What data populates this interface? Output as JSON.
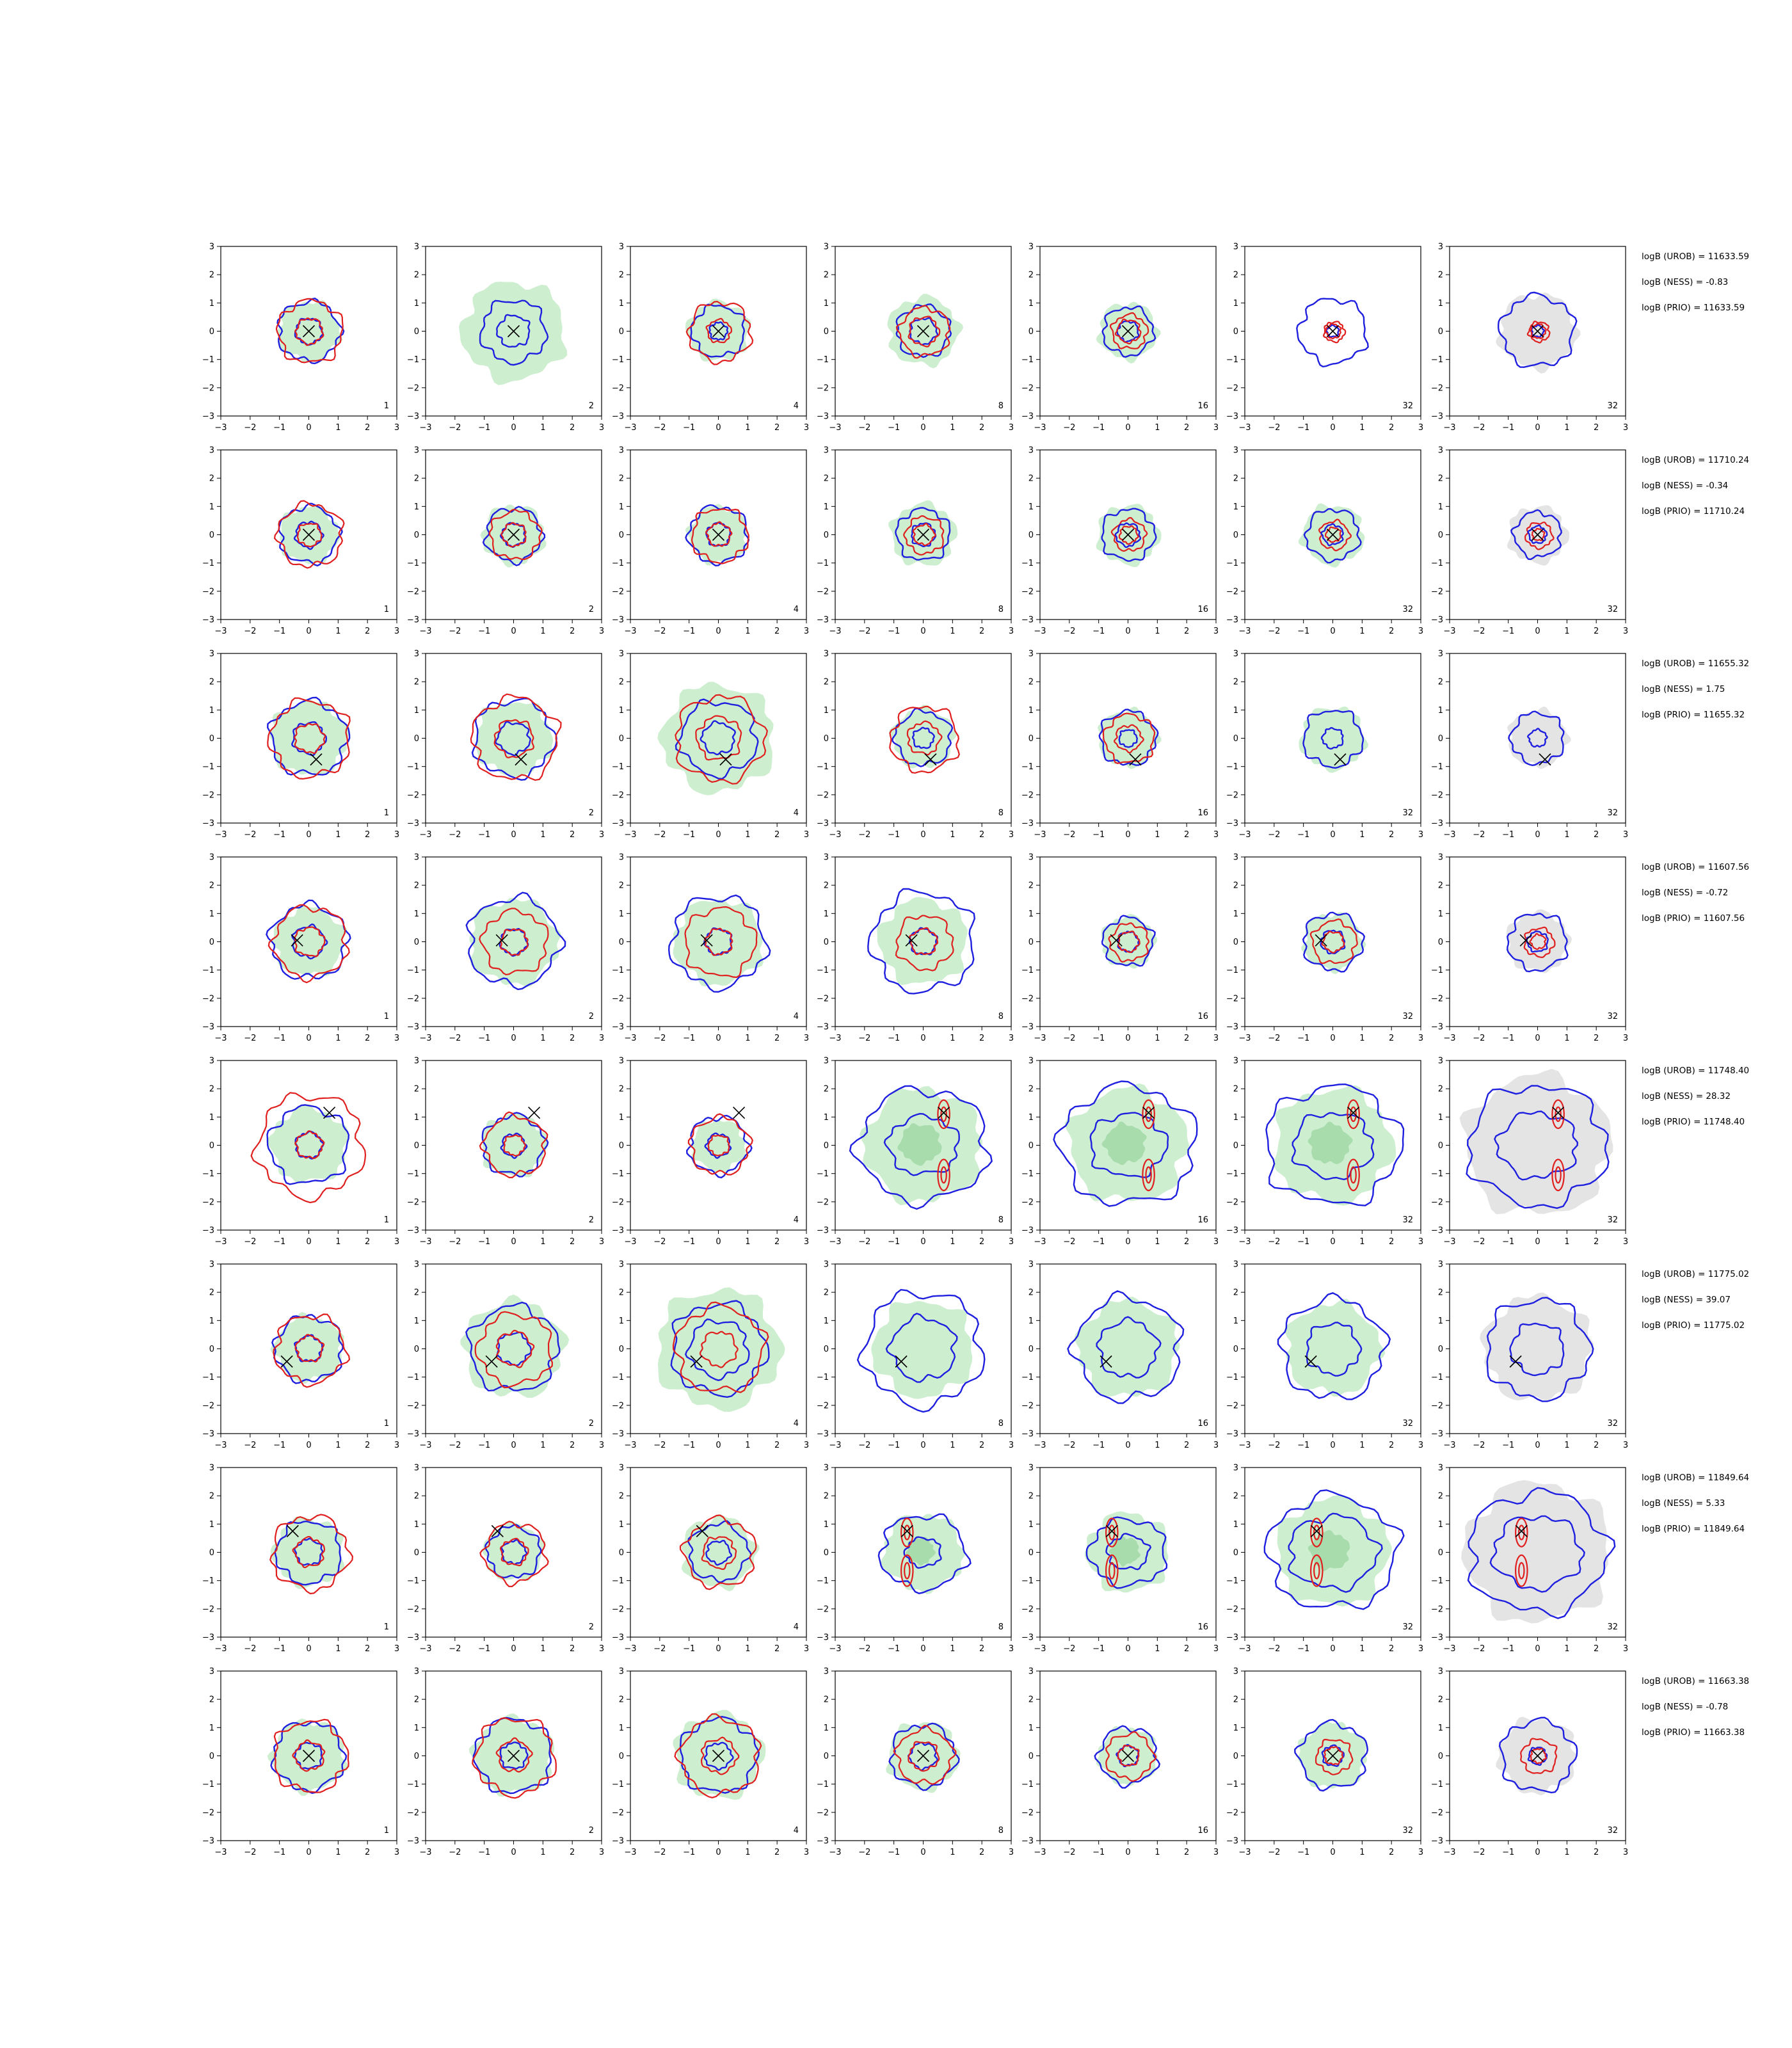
{
  "chart_data": {
    "type": "contour",
    "grid": {
      "rows": 8,
      "cols": 7
    },
    "axes": {
      "xlim": [
        -3,
        3
      ],
      "ylim": [
        -3,
        3
      ],
      "ticks": [
        -3,
        -2,
        -1,
        0,
        1,
        2,
        3
      ],
      "tick_labels": [
        "−3",
        "−2",
        "−1",
        "0",
        "1",
        "2",
        "3"
      ]
    },
    "grid_lines": false,
    "colors": {
      "model_a": "#1f1fe0",
      "model_b": "#e01f1f",
      "density_fill": "#cdeecf",
      "density_fill_dark": "#a8dcad",
      "prior_fill": "#e4e4e4",
      "marker": "#000000",
      "frame": "#000000"
    },
    "column_labels": [
      "1",
      "2",
      "4",
      "8",
      "16",
      "32",
      "32"
    ],
    "rows": [
      {
        "marker": [
          0.0,
          0.0
        ],
        "shape": "center",
        "annotations": [
          "logB (UROB) = 11633.59",
          "logB (NESS) = -0.83",
          "logB (PRIO) = 11633.59"
        ],
        "radii": {
          "fill": [
            1.05,
            1.75,
            1.05,
            1.2,
            1.0,
            0.0,
            0.0
          ],
          "a_outer": [
            1.05,
            1.1,
            0.9,
            0.9,
            0.85,
            1.15,
            1.25
          ],
          "a_inner": [
            0.45,
            0.55,
            0.3,
            0.45,
            0.35,
            0.2,
            0.2
          ],
          "b_outer": [
            1.1,
            0,
            1.05,
            0.85,
            0.6,
            0.35,
            0.35
          ],
          "b_inner": [
            0.45,
            0,
            0.4,
            0.5,
            0.4,
            0.25,
            0.25
          ]
        }
      },
      {
        "marker": [
          0.0,
          0.0
        ],
        "shape": "center",
        "annotations": [
          "logB (UROB) = 11710.24",
          "logB (NESS) = -0.34",
          "logB (PRIO) = 11710.24"
        ],
        "radii": {
          "fill": [
            1.0,
            1.05,
            1.0,
            1.1,
            1.05,
            1.05,
            0.0
          ],
          "a_outer": [
            1.0,
            0.95,
            1.0,
            0.9,
            0.9,
            0.9,
            0.8
          ],
          "a_inner": [
            0.45,
            0.4,
            0.4,
            0.4,
            0.4,
            0.35,
            0.3
          ],
          "b_outer": [
            1.1,
            0.85,
            0.95,
            0.65,
            0.55,
            0.5,
            0.45
          ],
          "b_inner": [
            0.4,
            0.4,
            0.4,
            0.35,
            0.3,
            0.25,
            0.2
          ]
        }
      },
      {
        "marker": [
          0.25,
          -0.75
        ],
        "shape": "offset",
        "annotations": [
          "logB (UROB) = 11655.32",
          "logB (NESS) = 1.75",
          "logB (PRIO) = 11655.32"
        ],
        "radii": {
          "fill": [
            1.3,
            1.3,
            1.9,
            1.05,
            1.0,
            1.1,
            0.0
          ],
          "a_outer": [
            1.3,
            1.35,
            1.3,
            0.95,
            0.95,
            1.0,
            0.9
          ],
          "a_inner": [
            0.55,
            0.55,
            0.55,
            0.35,
            0.3,
            0.35,
            0.3
          ],
          "b_outer": [
            1.35,
            1.45,
            1.5,
            1.15,
            0.85,
            0,
            0
          ],
          "b_inner": [
            0.5,
            0.65,
            0.75,
            0.55,
            0.45,
            0,
            0
          ]
        }
      },
      {
        "marker": [
          -0.4,
          0.05
        ],
        "shape": "center",
        "annotations": [
          "logB (UROB) = 11607.56",
          "logB (NESS) = -0.72",
          "logB (PRIO) = 11607.56"
        ],
        "radii": {
          "fill": [
            1.2,
            1.5,
            1.5,
            1.5,
            0.9,
            1.0,
            0.0
          ],
          "a_outer": [
            1.3,
            1.55,
            1.6,
            1.75,
            0.85,
            1.0,
            1.0
          ],
          "a_inner": [
            0.55,
            0.45,
            0.45,
            0.45,
            0.35,
            0.4,
            0.35
          ],
          "b_outer": [
            1.25,
            1.1,
            1.2,
            0.95,
            0.65,
            0.75,
            0.5
          ],
          "b_inner": [
            0.5,
            0.45,
            0.45,
            0.45,
            0.35,
            0.35,
            0.25
          ]
        }
      },
      {
        "marker": [
          0.7,
          1.15
        ],
        "shape": "split",
        "annotations": [
          "logB (UROB) = 11748.40",
          "logB (NESS) = 28.32",
          "logB (PRIO) = 11748.40"
        ],
        "radii": {
          "fill": [
            1.3,
            1.1,
            0.9,
            2.0,
            2.0,
            2.0,
            0.0
          ],
          "a_outer": [
            1.35,
            1.05,
            1.0,
            2.2,
            2.3,
            2.3,
            2.35
          ],
          "a_inner": [
            0.45,
            0.4,
            0.4,
            1.2,
            1.3,
            1.35,
            1.35
          ],
          "b_outer": [
            1.8,
            1.05,
            1.0,
            0,
            0,
            0,
            0
          ],
          "b_inner": [
            0.45,
            0.35,
            0.35,
            0,
            0,
            0,
            0
          ]
        }
      },
      {
        "marker": [
          -0.75,
          -0.45
        ],
        "shape": "offset",
        "annotations": [
          "logB (UROB) = 11775.02",
          "logB (NESS) = 39.07",
          "logB (PRIO) = 11775.02"
        ],
        "radii": {
          "fill": [
            1.15,
            1.7,
            2.1,
            1.7,
            1.7,
            1.6,
            0.0
          ],
          "a_outer": [
            1.15,
            1.5,
            1.6,
            2.0,
            1.8,
            1.75,
            1.75
          ],
          "a_inner": [
            0.45,
            0.55,
            1.0,
            1.1,
            1.0,
            0.9,
            0.9
          ],
          "b_outer": [
            1.2,
            1.25,
            1.5,
            0,
            0,
            0,
            0
          ],
          "b_inner": [
            0.45,
            0.6,
            0.6,
            0,
            0,
            0,
            0
          ]
        }
      },
      {
        "marker": [
          -0.55,
          0.75
        ],
        "shape": "split",
        "annotations": [
          "logB (UROB) = 11849.64",
          "logB (NESS) = 5.33",
          "logB (PRIO) = 11849.64"
        ],
        "radii": {
          "fill": [
            1.2,
            1.0,
            1.25,
            1.35,
            1.4,
            1.9,
            0.0
          ],
          "a_outer": [
            1.1,
            0.9,
            1.0,
            1.45,
            1.3,
            2.2,
            2.35
          ],
          "a_inner": [
            0.45,
            0.4,
            0.4,
            0.6,
            0.7,
            1.5,
            1.5
          ],
          "b_outer": [
            1.3,
            1.05,
            1.2,
            1.3,
            1.35,
            0,
            0
          ],
          "b_inner": [
            0.5,
            0.45,
            0.55,
            0.55,
            0.55,
            0,
            0
          ]
        }
      },
      {
        "marker": [
          0.0,
          0.0
        ],
        "shape": "center",
        "annotations": [
          "logB (UROB) = 11663.38",
          "logB (NESS) = -0.78",
          "logB (PRIO) = 11663.38"
        ],
        "radii": {
          "fill": [
            1.25,
            1.35,
            1.5,
            1.2,
            1.0,
            1.15,
            0.0
          ],
          "a_outer": [
            1.2,
            1.3,
            1.3,
            1.1,
            1.0,
            1.15,
            1.25
          ],
          "a_inner": [
            0.45,
            0.45,
            0.45,
            0.45,
            0.35,
            0.35,
            0.3
          ],
          "b_outer": [
            1.25,
            1.35,
            1.35,
            0.95,
            0.8,
            0.6,
            0.6
          ],
          "b_inner": [
            0.5,
            0.55,
            0.6,
            0.5,
            0.35,
            0.3,
            0.25
          ]
        }
      }
    ]
  }
}
